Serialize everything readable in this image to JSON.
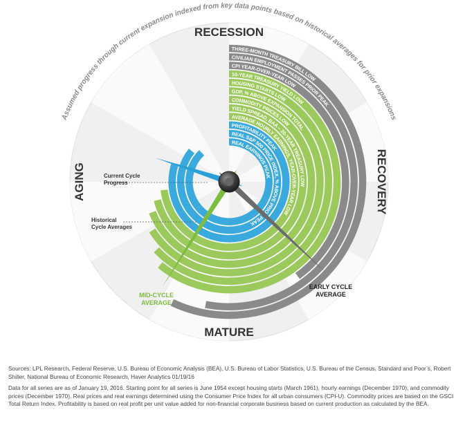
{
  "chart_data": {
    "type": "cycle-clock",
    "title": "Assumed progress through current expansion indexed from key data points based on historical averages for prior expansions",
    "phases": [
      "RECESSION",
      "RECOVERY",
      "MATURE",
      "AGING"
    ],
    "rlim": [
      0,
      100
    ],
    "series": [
      {
        "name": "THREE-MONTH TREASURY BILL LOW",
        "color": "#8a8a8a",
        "value": 57
      },
      {
        "name": "CIVILIAN EMPLOYMENT PASSES PRIOR PEAK",
        "color": "#8a8a8a",
        "value": 53
      },
      {
        "name": "CPI YEAR-OVER-YEAR LOW",
        "color": "#8a8a8a",
        "value": 40
      },
      {
        "name": "10-YEAR TREASURY YIELD LOW",
        "color": "#9cc95b",
        "value": 61
      },
      {
        "name": "HOUSING STARTS LOW",
        "color": "#9cc95b",
        "value": 63
      },
      {
        "name": "GDP, % ABOVE EXPANSION TOTAL",
        "color": "#9cc95b",
        "value": 66
      },
      {
        "name": "COMMODITY PRICES LOW",
        "color": "#9cc95b",
        "value": 69
      },
      {
        "name": "YIELD SPREAD, BAA – 20-YEAR TREASURY LOW",
        "color": "#9cc95b",
        "value": 71
      },
      {
        "name": "AVERAGE HOURLY EARNINGS, YEAR-OVER-YEAR LOW",
        "color": "#9cc95b",
        "value": 73
      },
      {
        "name": "PROFITABILITY PEAK",
        "color": "#3aa9dd",
        "value": 80
      },
      {
        "name": "REAL S&P 500 PRICE INDEX, % ABOVE PRIOR PEAK",
        "color": "#3aa9dd",
        "value": 86
      },
      {
        "name": "REAL EARNINGS PEAK",
        "color": "#3aa9dd",
        "value": 88
      }
    ],
    "hands": [
      {
        "name": "Current Cycle Progress",
        "color": "#2aa0d8",
        "value": 80
      },
      {
        "name": "MID-CYCLE AVERAGE",
        "color": "#7cbc3f",
        "value": 59
      },
      {
        "name": "EARLY CYCLE AVERAGE",
        "color": "#6b6b6b",
        "value": 37
      }
    ],
    "annotations": [
      "Historical Cycle Averages"
    ],
    "footnotes": [
      "Sources: LPL Research, Federal Reserve, U.S. Bureau of Economic Analysis (BEA), U.S. Bureau of Labor Statistics, U.S. Bureau of the Census, Standard and Poor’s, Robert Shiller, National Bureau of Economic Research, Haver Analytics  01/19/16",
      "Data for all series are as of January 19, 2016. Starting point for all series is June 1954 except housing starts (March 1961), hourly earnings (December 1970), and commodity prices (December 1970). Real prices and real earnings determined using the Consumer Price Index for all urban consumers (CPI-U). Commodity prices are based on the GSCI Total Return Index. Profitability is based on real profit per unit value added for non-financial corporate business based on current production as calculated by the BEA."
    ]
  }
}
